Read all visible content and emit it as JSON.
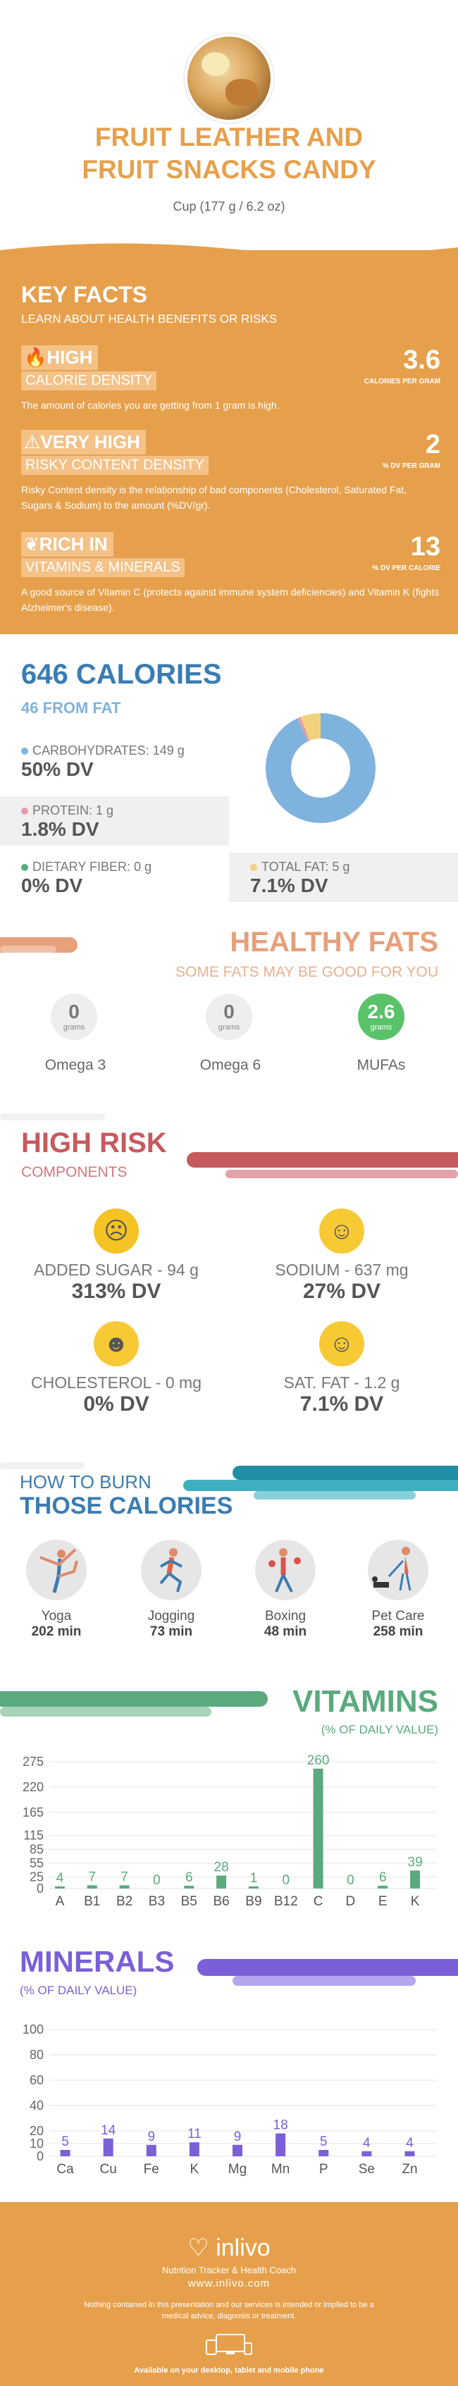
{
  "header": {
    "title_line1": "FRUIT LEATHER AND",
    "title_line2": "FRUIT SNACKS CANDY",
    "serving": "Cup (177 g / 6.2 oz)"
  },
  "key_facts": {
    "title": "KEY FACTS",
    "subtitle": "LEARN ABOUT HEALTH BENEFITS OR RISKS",
    "items": [
      {
        "level": "HIGH",
        "name": "CALORIE DENSITY",
        "value": "3.6",
        "unit": "CALORIES PER GRAM",
        "desc": "The amount of calories you are getting from 1 gram is high.",
        "icon": "fire-icon"
      },
      {
        "level": "VERY HIGH",
        "name": "RISKY CONTENT DENSITY",
        "value": "2",
        "unit": "% DV PER GRAM",
        "desc": "Risky Content density is the relationship of bad components (Cholesterol, Saturated Fat, Sugars & Sodium) to the amount (%DV/gr).",
        "icon": "warning-icon"
      },
      {
        "level": "RICH IN",
        "name": "VITAMINS & MINERALS",
        "value": "13",
        "unit": "% DV PER CALORIE",
        "desc": "A good source of Vitamin C (protects against immune system deficiencies) and Vitamin K (fights Alzheimer's disease).",
        "icon": "leaf-icon"
      }
    ]
  },
  "calories": {
    "title": "646 CALORIES",
    "from_fat": "46 FROM FAT",
    "carbs_label": "CARBOHYDRATES: 149 g",
    "carbs_dv": "50% DV",
    "protein_label": "PROTEIN: 1 g",
    "protein_dv": "1.8% DV",
    "fiber_label": "DIETARY FIBER: 0 g",
    "fiber_dv": "0% DV",
    "fat_label": "TOTAL FAT: 5 g",
    "fat_dv": "7.1% DV",
    "colors": {
      "carbs": "#7fb3dd",
      "protein": "#e89aa8",
      "fiber": "#5aaa7e",
      "fat": "#f3d27e"
    },
    "donut_fractions": {
      "carbs": 0.93,
      "protein": 0.01,
      "fat": 0.06
    }
  },
  "healthy_fats": {
    "title": "HEALTHY FATS",
    "subtitle": "SOME FATS MAY BE GOOD FOR YOU",
    "unit": "grams",
    "items": [
      {
        "value": "0",
        "name": "Omega 3"
      },
      {
        "value": "0",
        "name": "Omega 6"
      },
      {
        "value": "2.6",
        "name": "MUFAs"
      }
    ]
  },
  "high_risk": {
    "title": "HIGH RISK",
    "subtitle": "COMPONENTS",
    "items": [
      {
        "label": "ADDED SUGAR - 94 g",
        "dv": "313% DV",
        "face": "angry-face-icon"
      },
      {
        "label": "SODIUM - 637 mg",
        "dv": "27% DV",
        "face": "smile-face-icon"
      },
      {
        "label": "CHOLESTEROL - 0 mg",
        "dv": "0% DV",
        "face": "grin-face-icon"
      },
      {
        "label": "SAT. FAT - 1.2 g",
        "dv": "7.1% DV",
        "face": "smile-face-icon"
      }
    ]
  },
  "burn": {
    "title_line1": "HOW TO BURN",
    "title_line2": "THOSE CALORIES",
    "activities": [
      {
        "name": "Yoga",
        "minutes": "202 min"
      },
      {
        "name": "Jogging",
        "minutes": "73 min"
      },
      {
        "name": "Boxing",
        "minutes": "48 min"
      },
      {
        "name": "Pet Care",
        "minutes": "258 min"
      }
    ]
  },
  "vitamins": {
    "title": "VITAMINS",
    "subtitle": "(% OF DAILY VALUE)"
  },
  "minerals": {
    "title": "MINERALS",
    "subtitle": "(% OF DAILY VALUE)"
  },
  "chart_data": [
    {
      "type": "bar",
      "categories": [
        "A",
        "B1",
        "B2",
        "B3",
        "B5",
        "B6",
        "B9",
        "B12",
        "C",
        "D",
        "E",
        "K"
      ],
      "values": [
        4,
        7,
        7,
        0,
        6,
        28,
        1,
        0,
        260,
        0,
        6,
        39
      ],
      "ylim": [
        0,
        275
      ],
      "yticks": [
        0,
        25,
        55,
        85,
        115,
        165,
        220,
        275
      ],
      "color": "#5aaa7e",
      "grid": true
    },
    {
      "type": "bar",
      "categories": [
        "Ca",
        "Cu",
        "Fe",
        "K",
        "Mg",
        "Mn",
        "P",
        "Se",
        "Zn"
      ],
      "values": [
        5,
        14,
        9,
        11,
        9,
        18,
        5,
        4,
        4
      ],
      "ylim": [
        0,
        100
      ],
      "yticks": [
        0,
        10,
        20,
        40,
        60,
        80,
        100
      ],
      "color": "#7b5fd6",
      "grid": true
    }
  ],
  "footer": {
    "brand": "inlivo",
    "tagline": "Nutrition Tracker & Health Coach",
    "url": "www.inlivo.com",
    "disclaimer": "Nothing contained in this presentation and our services is intended or implied to be a medical advice, diagnosis or treatment.",
    "available": "Available on your desktop, tablet and mobile phone"
  }
}
